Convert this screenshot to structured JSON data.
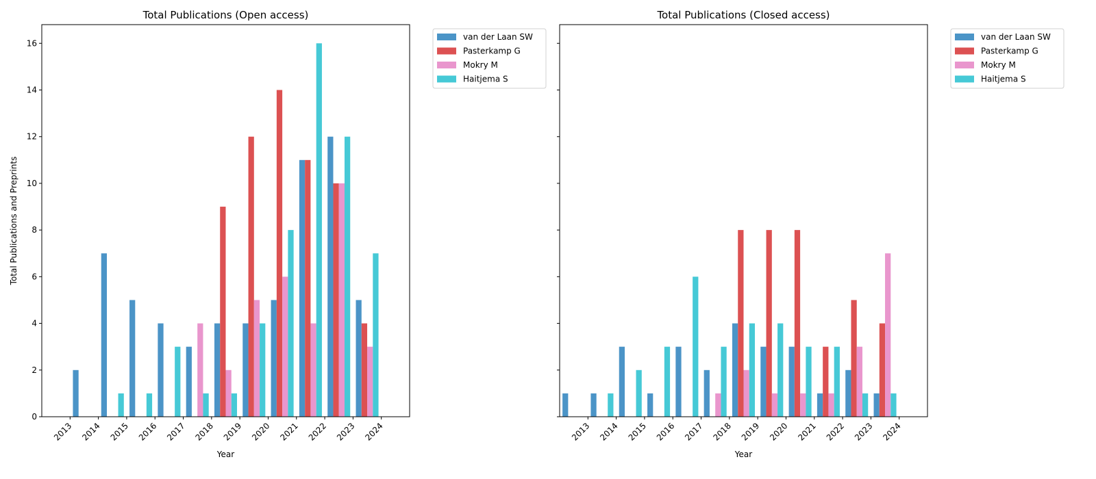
{
  "colors": {
    "van der Laan SW": "#4b94c7",
    "Pasterkamp G": "#dc5152",
    "Mokry M": "#e996cd",
    "Haitjema S": "#46c9d6"
  },
  "chart_data": [
    {
      "type": "bar",
      "title": "Total Publications (Open access)",
      "xlabel": "Year",
      "ylabel": "Total Publications and Preprints",
      "ylim": [
        0,
        16.8
      ],
      "yticks": [
        0,
        2,
        4,
        6,
        8,
        10,
        12,
        14,
        16
      ],
      "categories": [
        "2013",
        "2014",
        "2015",
        "2016",
        "2017",
        "2018",
        "2019",
        "2020",
        "2021",
        "2022",
        "2023",
        "2024"
      ],
      "legend_position": "outside-upper-right",
      "series": [
        {
          "name": "van der Laan SW",
          "values": [
            0,
            2,
            7,
            5,
            4,
            3,
            4,
            4,
            5,
            11,
            12,
            5
          ]
        },
        {
          "name": "Pasterkamp G",
          "values": [
            0,
            0,
            0,
            0,
            0,
            0,
            9,
            12,
            14,
            11,
            10,
            4
          ]
        },
        {
          "name": "Mokry M",
          "values": [
            0,
            0,
            0,
            0,
            0,
            4,
            2,
            5,
            6,
            4,
            10,
            3
          ]
        },
        {
          "name": "Haitjema S",
          "values": [
            0,
            0,
            1,
            1,
            3,
            1,
            1,
            4,
            8,
            16,
            12,
            7
          ]
        }
      ]
    },
    {
      "type": "bar",
      "title": "Total Publications (Closed access)",
      "xlabel": "Year",
      "ylabel": "",
      "ylim": [
        0,
        16.8
      ],
      "yticks": [
        0,
        2,
        4,
        6,
        8,
        10,
        12,
        14,
        16
      ],
      "categories": [
        "2013",
        "2014",
        "2015",
        "2016",
        "2017",
        "2018",
        "2019",
        "2020",
        "2021",
        "2022",
        "2023",
        "2024"
      ],
      "legend_position": "outside-upper-right",
      "series": [
        {
          "name": "van der Laan SW",
          "values": [
            1,
            1,
            3,
            1,
            3,
            2,
            4,
            3,
            3,
            1,
            2,
            1
          ]
        },
        {
          "name": "Pasterkamp G",
          "values": [
            0,
            0,
            0,
            0,
            0,
            0,
            8,
            8,
            8,
            3,
            5,
            4
          ]
        },
        {
          "name": "Mokry M",
          "values": [
            0,
            0,
            0,
            0,
            0,
            1,
            2,
            1,
            1,
            1,
            3,
            7
          ]
        },
        {
          "name": "Haitjema S",
          "values": [
            0,
            1,
            2,
            3,
            6,
            3,
            4,
            4,
            3,
            3,
            1,
            1
          ]
        }
      ]
    }
  ]
}
